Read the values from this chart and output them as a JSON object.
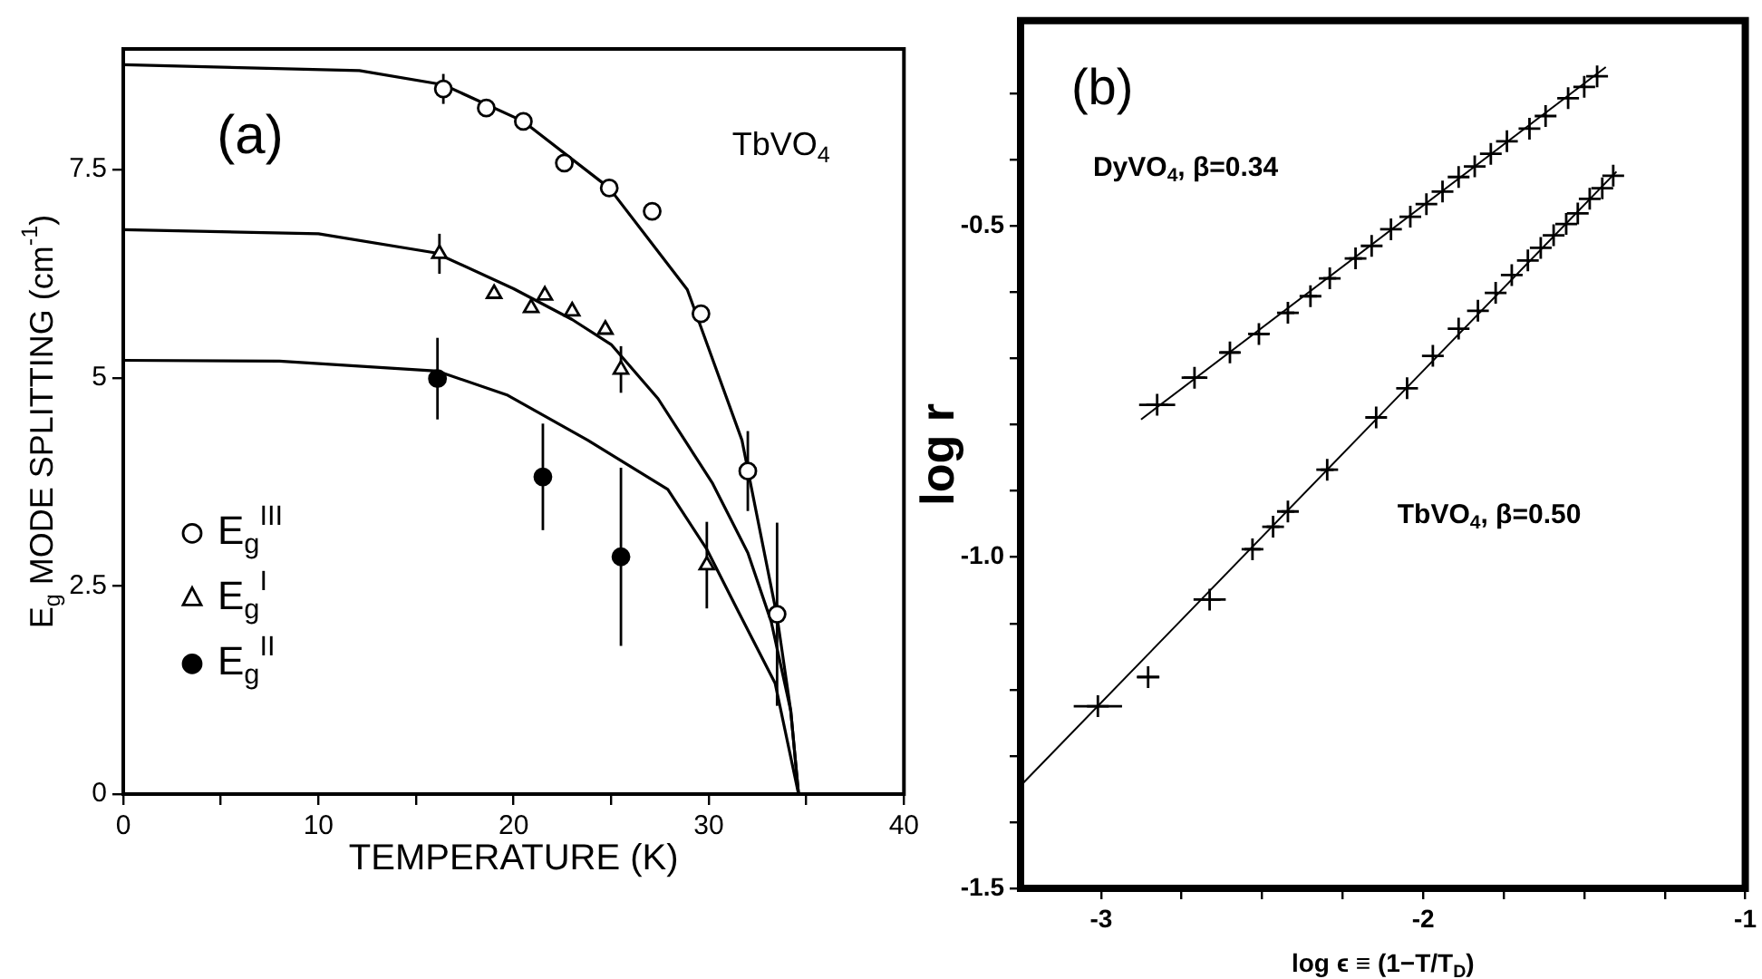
{
  "chart_data": [
    {
      "type": "scatter",
      "xlabel": "TEMPERATURE (K)",
      "ylabel": "E$_{g}$ MODE SPLITTING (cm$^{-1}$)",
      "xlim": [
        0,
        40
      ],
      "ylim": [
        0,
        8.95
      ],
      "xticks": [
        0,
        {
          "value": 5,
          "label": null
        },
        10,
        {
          "value": 15,
          "label": null
        },
        20,
        {
          "value": 25,
          "label": null
        },
        30,
        {
          "value": 35,
          "label": null
        },
        40
      ],
      "yticks": [
        0,
        2.5,
        5,
        7.5
      ],
      "grid": false,
      "legend": "left",
      "annotations": [
        "(a)",
        "TbVO$_{4}$"
      ],
      "series": [
        {
          "name": "E$_{g}$$^{III}$",
          "type": "scatter",
          "marker": "circle",
          "color": "#000000",
          "x": [
            16.4,
            18.6,
            20.5,
            22.6,
            24.9,
            27.1,
            29.6,
            32.0,
            33.5
          ],
          "values": [
            8.47,
            8.24,
            8.08,
            7.58,
            7.28,
            7.0,
            5.77,
            3.88,
            2.16
          ],
          "errors": [
            0.18,
            null,
            null,
            null,
            null,
            null,
            null,
            0.48,
            1.1
          ]
        },
        {
          "name": "E$_{g}$$^{I}$",
          "type": "scatter",
          "marker": "triangle",
          "color": "#000000",
          "x": [
            16.2,
            19.0,
            20.9,
            21.6,
            23.0,
            24.7,
            25.5,
            29.9
          ],
          "values": [
            6.49,
            6.01,
            5.84,
            5.99,
            5.8,
            5.58,
            5.1,
            2.75
          ],
          "errors": [
            0.24,
            null,
            null,
            null,
            null,
            null,
            0.28,
            0.52
          ]
        },
        {
          "name": "E$_{g}$$^{II}$",
          "type": "scatter",
          "marker": "circle",
          "color": "#000000",
          "x": [
            16.1,
            21.5,
            25.5
          ],
          "values": [
            4.99,
            3.81,
            2.85
          ],
          "errors": [
            0.49,
            0.64,
            1.07
          ]
        },
        {
          "type": "line",
          "marker": "none",
          "color": "#000000",
          "x": [
            0,
            12.1,
            16.4,
            20.5,
            24.9,
            28.9,
            31.7,
            33.5,
            34.2,
            34.6
          ],
          "values": [
            8.76,
            8.69,
            8.52,
            8.08,
            7.28,
            6.06,
            4.25,
            2.13,
            1.0,
            0
          ]
        },
        {
          "type": "line",
          "marker": "none",
          "color": "#000000",
          "x": [
            0,
            10,
            16,
            20,
            23,
            25,
            27.4,
            30.2,
            32,
            33.2,
            34.2,
            34.6
          ],
          "values": [
            6.78,
            6.73,
            6.5,
            6.07,
            5.7,
            5.4,
            4.75,
            3.73,
            2.9,
            2.07,
            1.0,
            0
          ]
        },
        {
          "type": "line",
          "marker": "none",
          "color": "#000000",
          "x": [
            0,
            8,
            16.1,
            19.7,
            23.8,
            27.9,
            29.9,
            31.5,
            33.4,
            34.6
          ],
          "values": [
            5.21,
            5.2,
            5.08,
            4.79,
            4.25,
            3.66,
            2.94,
            2.2,
            1.33,
            0
          ]
        }
      ]
    },
    {
      "type": "scatter",
      "xlabel": "log ϵ ≡ (1−T/T$_{D}$)",
      "ylabel": "log r",
      "xlim": [
        -3.25,
        -1
      ],
      "ylim": [
        -1.5,
        -0.19
      ],
      "xticks": [
        -3,
        {
          "value": -2.75,
          "label": null
        },
        {
          "value": -2.5,
          "label": null
        },
        {
          "value": -2.25,
          "label": null
        },
        -2,
        {
          "value": -1.75,
          "label": null
        },
        {
          "value": -1.5,
          "label": null
        },
        {
          "value": -1.25,
          "label": null
        },
        -1
      ],
      "yticks": [
        -1.5,
        {
          "value": -1.4,
          "label": null
        },
        {
          "value": -1.3,
          "label": null
        },
        {
          "value": -1.2,
          "label": null
        },
        {
          "value": -1.1,
          "label": null
        },
        {
          "value": -1.0,
          "label": "-1.0"
        },
        {
          "value": -0.9,
          "label": null
        },
        {
          "value": -0.8,
          "label": null
        },
        {
          "value": -0.7,
          "label": null
        },
        {
          "value": -0.6,
          "label": null
        },
        -0.5,
        {
          "value": -0.4,
          "label": null
        },
        {
          "value": -0.3,
          "label": null
        }
      ],
      "grid": false,
      "annotations": [
        "(b)",
        "DyVO$_{4}$, β=0.34",
        "TbVO$_{4}$, β=0.50"
      ],
      "series": [
        {
          "type": "scatter",
          "marker": "cross",
          "color": "#000000",
          "x": [
            -2.826,
            -2.71,
            -2.6,
            -2.51,
            -2.42,
            -2.35,
            -2.29,
            -2.21,
            -2.16,
            -2.1,
            -2.04,
            -1.99,
            -1.94,
            -1.89,
            -1.84,
            -1.79,
            -1.74,
            -1.67,
            -1.62,
            -1.55,
            -1.5,
            -1.46
          ],
          "values": [
            -0.77,
            -0.729,
            -0.691,
            -0.663,
            -0.631,
            -0.606,
            -0.579,
            -0.549,
            -0.53,
            -0.505,
            -0.486,
            -0.467,
            -0.448,
            -0.426,
            -0.41,
            -0.391,
            -0.372,
            -0.353,
            -0.334,
            -0.307,
            -0.29,
            -0.274
          ],
          "xerrors": [
            0.056,
            0.04,
            0.03,
            0.03,
            0.02,
            0.02,
            0.02,
            0.02,
            null,
            null,
            null,
            null,
            null,
            null,
            null,
            null,
            null,
            null,
            null,
            null,
            null,
            null
          ]
        },
        {
          "type": "scatter",
          "marker": "cross",
          "color": "#000000",
          "x": [
            -3.01,
            -2.854,
            -2.663,
            -2.53,
            -2.466,
            -2.42,
            -2.298,
            -2.146,
            -2.05,
            -1.97,
            -1.89,
            -1.83,
            -1.775,
            -1.725,
            -1.675,
            -1.635,
            -1.595,
            -1.556,
            -1.52,
            -1.483,
            -1.444,
            -1.41
          ],
          "values": [
            -1.225,
            -1.181,
            -1.064,
            -0.988,
            -0.954,
            -0.931,
            -0.868,
            -0.789,
            -0.745,
            -0.696,
            -0.655,
            -0.628,
            -0.601,
            -0.574,
            -0.552,
            -0.533,
            -0.514,
            -0.497,
            -0.481,
            -0.459,
            -0.443,
            -0.424
          ],
          "xerrors": [
            0.075,
            0.035,
            0.05,
            0.025,
            0.02,
            0.02,
            0.02,
            0.02,
            null,
            null,
            null,
            null,
            null,
            null,
            null,
            null,
            null,
            null,
            null,
            null,
            null,
            null
          ]
        },
        {
          "type": "line",
          "marker": "none",
          "color": "#000000",
          "x": [
            -2.876,
            -1.433
          ],
          "values": [
            -0.792,
            -0.26
          ]
        },
        {
          "type": "line",
          "marker": "none",
          "color": "#000000",
          "x": [
            -3.25,
            -1.4
          ],
          "values": [
            -1.345,
            -0.418
          ]
        }
      ]
    }
  ]
}
